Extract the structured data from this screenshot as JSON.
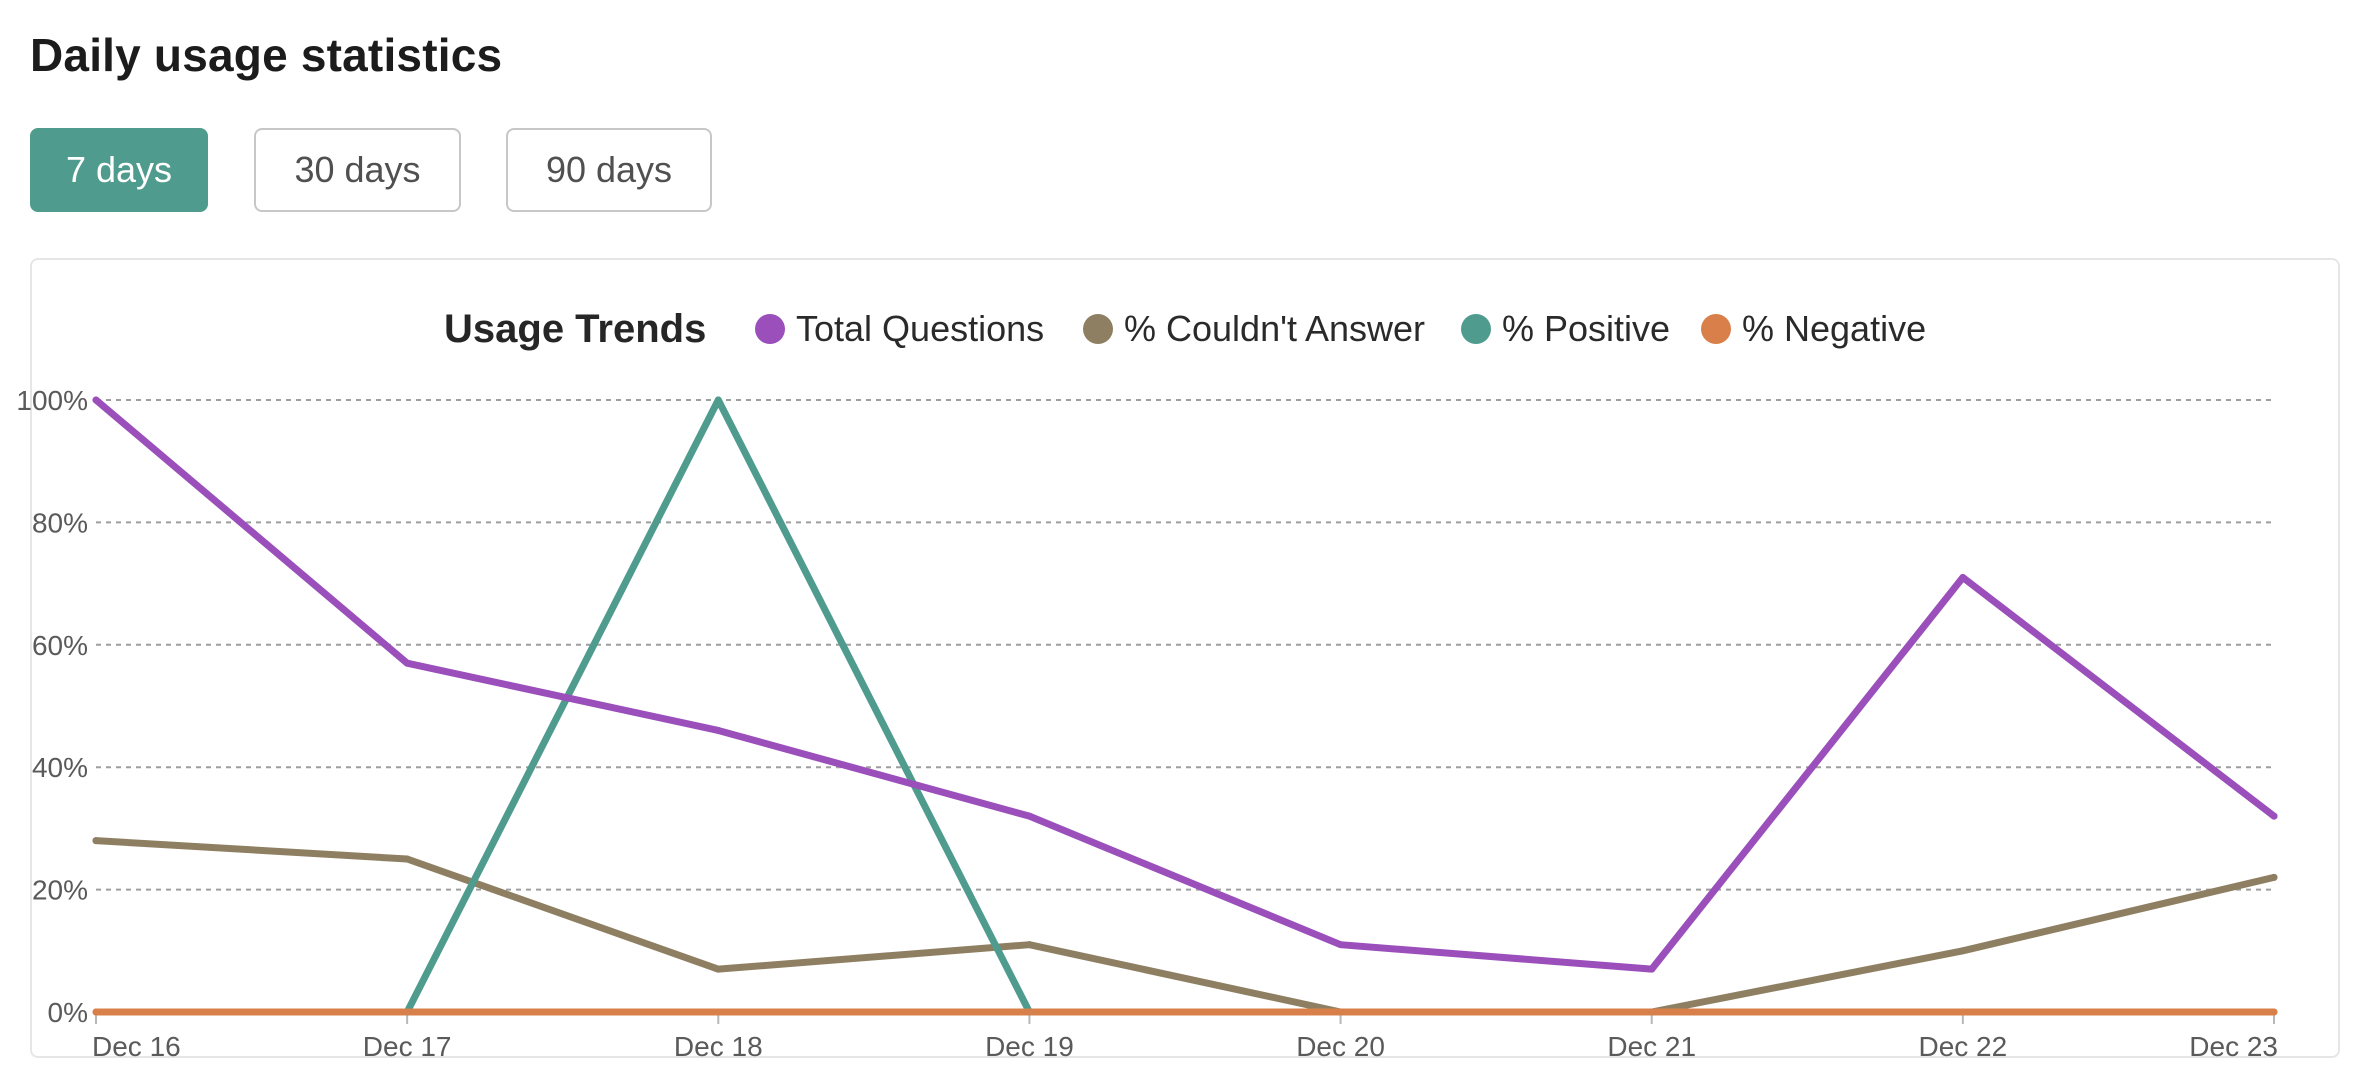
{
  "page": {
    "title": "Daily usage statistics"
  },
  "range_buttons": [
    {
      "label": "7 days",
      "active": true
    },
    {
      "label": "30 days",
      "active": false
    },
    {
      "label": "90 days",
      "active": false
    }
  ],
  "colors": {
    "accent": "#4f9c8e",
    "grid": "#9e9e9e",
    "axis": "#b8b8b8"
  },
  "chart_data": {
    "type": "line",
    "title": "Usage Trends",
    "xlabel": "",
    "ylabel": "",
    "categories": [
      "Dec 16",
      "Dec 17",
      "Dec 18",
      "Dec 19",
      "Dec 20",
      "Dec 21",
      "Dec 22",
      "Dec 23"
    ],
    "ylim": [
      0,
      100
    ],
    "y_ticks": [
      "0%",
      "20%",
      "40%",
      "60%",
      "80%",
      "100%"
    ],
    "grid": true,
    "legend_position": "top",
    "series": [
      {
        "name": "Total Questions",
        "color": "#9b4fbb",
        "values": [
          100,
          57,
          46,
          32,
          11,
          7,
          71,
          32
        ]
      },
      {
        "name": "% Couldn't Answer",
        "color": "#8f7f62",
        "values": [
          28,
          25,
          7,
          11,
          0,
          0,
          10,
          22
        ]
      },
      {
        "name": "% Positive",
        "color": "#4f9c8e",
        "values": [
          null,
          0,
          100,
          0,
          null,
          null,
          null,
          null
        ]
      },
      {
        "name": "% Negative",
        "color": "#d9804a",
        "values": [
          0,
          0,
          0,
          0,
          0,
          0,
          0,
          0
        ]
      }
    ]
  }
}
